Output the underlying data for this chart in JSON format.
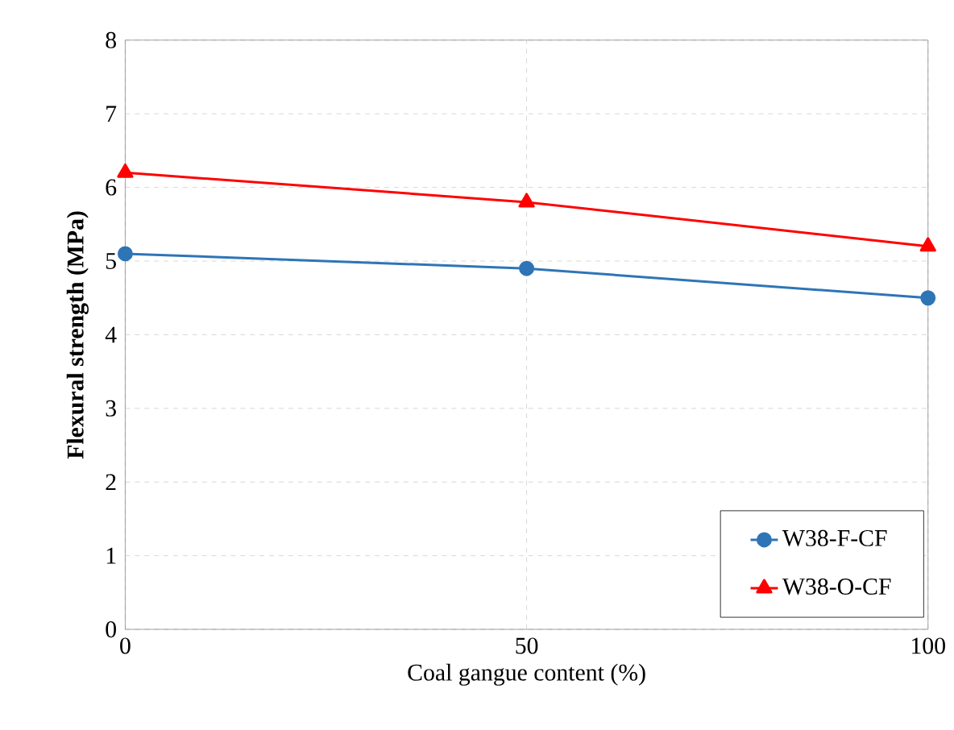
{
  "chart_data": {
    "type": "line",
    "xlabel": "Coal gangue content (%)",
    "ylabel": "Flexural strength (MPa)",
    "x": [
      0,
      50,
      100
    ],
    "series": [
      {
        "name": "W38-F-CF",
        "color": "#2e75b6",
        "marker": "circle",
        "values": [
          5.1,
          4.9,
          4.5
        ]
      },
      {
        "name": "W38-O-CF",
        "color": "#ff0000",
        "marker": "triangle",
        "values": [
          6.2,
          5.8,
          5.2
        ]
      }
    ],
    "xlim": [
      0,
      100
    ],
    "xticks": [
      0,
      50,
      100
    ],
    "ylim": [
      0,
      8
    ],
    "yticks": [
      0,
      1,
      2,
      3,
      4,
      5,
      6,
      7,
      8
    ],
    "grid": true,
    "legend": "bottom right",
    "line_style": "solid"
  }
}
